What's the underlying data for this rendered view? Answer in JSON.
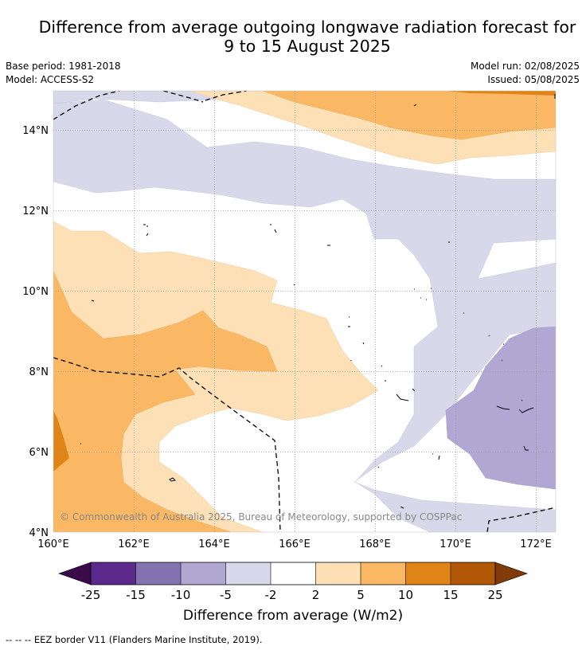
{
  "title_line1": "Difference from average outgoing longwave radiation forecast for",
  "title_line2": "9 to 15 August 2025",
  "base_period": "Base period: 1981-2018",
  "model": "Model: ACCESS-S2",
  "model_run": "Model run: 02/08/2025",
  "issued": "Issued: 05/08/2025",
  "copyright": "© Commonwealth of Australia 2025, Bureau of Meteorology, supported by COSPPac",
  "footnote": "--  --  -- EEZ border V11 (Flanders Marine Institute, 2019).",
  "lat_ticks": [
    "14°N",
    "12°N",
    "10°N",
    "8°N",
    "6°N",
    "4°N"
  ],
  "lon_ticks": [
    "160°E",
    "162°E",
    "164°E",
    "166°E",
    "168°E",
    "170°E",
    "172°E"
  ],
  "colorbar": {
    "label": "Difference from average (W/m2)",
    "ticks": [
      "-25",
      "-15",
      "-10",
      "-5",
      "-2",
      "2",
      "5",
      "10",
      "15",
      "25"
    ],
    "colors": [
      "#3b0a4a",
      "#5c2a8c",
      "#8373b0",
      "#b0a8d3",
      "#d8d8ea",
      "#ffffff",
      "#fde0b5",
      "#fab864",
      "#e08418",
      "#b35806",
      "#7f3b08"
    ]
  },
  "map": {
    "lon_range": [
      160,
      172.5
    ],
    "lat_range": [
      4,
      15
    ],
    "region_colors": {
      "light_purple": "#d8d8ea",
      "medium_purple": "#b0a8d3",
      "light_orange": "#fde0b5",
      "medium_orange": "#fab864",
      "dark_orange": "#e08418"
    }
  }
}
